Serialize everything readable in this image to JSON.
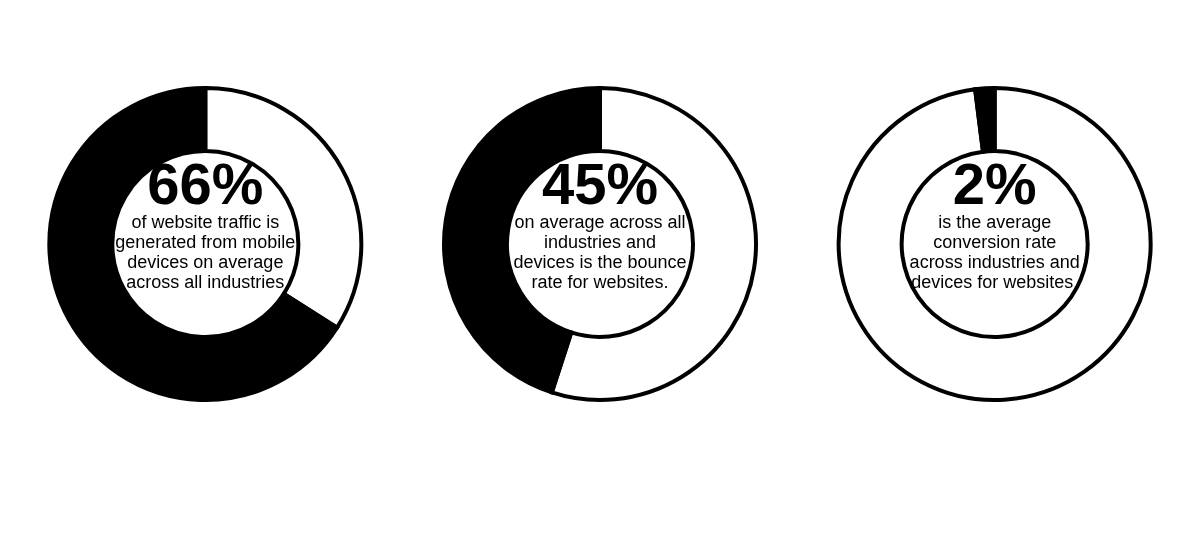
{
  "chart_data": [
    {
      "type": "donut",
      "categories": [
        null,
        null
      ],
      "values": [
        34,
        66
      ],
      "colors": [
        "#ffffff",
        "#000000"
      ],
      "annotations": [
        "66%",
        "of website traffic is generated from mobile devices on average across all industries"
      ]
    },
    {
      "type": "donut",
      "categories": [
        null,
        null
      ],
      "values": [
        55,
        45
      ],
      "colors": [
        "#ffffff",
        "#000000"
      ],
      "annotations": [
        "45%",
        "on average across all industries and devices is the bounce rate for websites."
      ]
    },
    {
      "type": "donut",
      "categories": [
        null,
        null
      ],
      "values": [
        98,
        2
      ],
      "colors": [
        "#ffffff",
        "#000000"
      ],
      "annotations": [
        "2%",
        "is the average conversion rate across industries and devices for websites."
      ]
    }
  ]
}
